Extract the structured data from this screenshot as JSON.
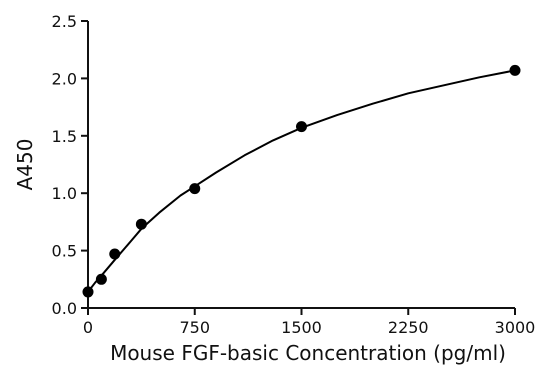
{
  "chart_data": {
    "type": "scatter",
    "title": "",
    "xlabel": "Mouse FGF-basic Concentration (pg/ml)",
    "ylabel": "A450",
    "xlim": [
      0,
      3000
    ],
    "ylim": [
      0,
      2.5
    ],
    "x_ticks": [
      0,
      750,
      1500,
      2250,
      3000
    ],
    "y_ticks": [
      0.0,
      0.5,
      1.0,
      1.5,
      2.0,
      2.5
    ],
    "x_tick_labels": [
      "0",
      "750",
      "1500",
      "2250",
      "3000"
    ],
    "y_tick_labels": [
      "0.0",
      "0.5",
      "1.0",
      "1.5",
      "2.0",
      "2.5"
    ],
    "grid": false,
    "legend": "none",
    "series": [
      {
        "points": [
          {
            "x": 0,
            "y": 0.14
          },
          {
            "x": 94,
            "y": 0.25
          },
          {
            "x": 188,
            "y": 0.47
          },
          {
            "x": 375,
            "y": 0.73
          },
          {
            "x": 750,
            "y": 1.04
          },
          {
            "x": 1500,
            "y": 1.58
          },
          {
            "x": 3000,
            "y": 2.07
          }
        ],
        "fit_curve": [
          {
            "x": 0,
            "y": 0.14
          },
          {
            "x": 50,
            "y": 0.22
          },
          {
            "x": 100,
            "y": 0.29
          },
          {
            "x": 188,
            "y": 0.42
          },
          {
            "x": 300,
            "y": 0.58
          },
          {
            "x": 375,
            "y": 0.69
          },
          {
            "x": 500,
            "y": 0.83
          },
          {
            "x": 650,
            "y": 0.98
          },
          {
            "x": 750,
            "y": 1.06
          },
          {
            "x": 900,
            "y": 1.18
          },
          {
            "x": 1100,
            "y": 1.33
          },
          {
            "x": 1300,
            "y": 1.46
          },
          {
            "x": 1500,
            "y": 1.57
          },
          {
            "x": 1750,
            "y": 1.68
          },
          {
            "x": 2000,
            "y": 1.78
          },
          {
            "x": 2250,
            "y": 1.87
          },
          {
            "x": 2500,
            "y": 1.94
          },
          {
            "x": 2750,
            "y": 2.01
          },
          {
            "x": 3000,
            "y": 2.07
          }
        ]
      }
    ],
    "colors": {
      "axis": "#111111",
      "marker": "#000000",
      "curve": "#000000"
    }
  }
}
